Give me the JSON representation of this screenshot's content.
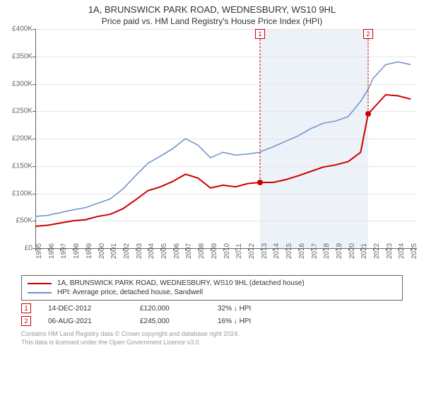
{
  "title": "1A, BRUNSWICK PARK ROAD, WEDNESBURY, WS10 9HL",
  "subtitle": "Price paid vs. HM Land Registry's House Price Index (HPI)",
  "chart": {
    "type": "line",
    "background_color": "#ffffff",
    "grid_color": "#e6e6e6",
    "axis_color": "#666666",
    "shaded_region_color": "#ecf2f8",
    "x": {
      "min": 1995,
      "max": 2025.5,
      "ticks": [
        1995,
        1996,
        1997,
        1998,
        1999,
        2000,
        2001,
        2002,
        2003,
        2004,
        2005,
        2006,
        2007,
        2008,
        2009,
        2010,
        2011,
        2012,
        2013,
        2014,
        2015,
        2016,
        2017,
        2018,
        2019,
        2020,
        2021,
        2022,
        2023,
        2024,
        2025
      ],
      "tick_label_fontsize": 10,
      "tick_label_rotation": -90
    },
    "y": {
      "min": 0,
      "max": 400000,
      "ticks": [
        0,
        50000,
        100000,
        150000,
        200000,
        250000,
        300000,
        350000,
        400000
      ],
      "tick_labels": [
        "£0",
        "£50K",
        "£100K",
        "£150K",
        "£200K",
        "£250K",
        "£300K",
        "£350K",
        "£400K"
      ],
      "tick_label_fontsize": 10
    },
    "series": [
      {
        "name": "property",
        "label": "1A, BRUNSWICK PARK ROAD, WEDNESBURY, WS10 9HL (detached house)",
        "color": "#cc0000",
        "line_width": 2,
        "data": [
          [
            1995,
            40000
          ],
          [
            1996,
            42000
          ],
          [
            1997,
            46000
          ],
          [
            1998,
            50000
          ],
          [
            1999,
            52000
          ],
          [
            2000,
            58000
          ],
          [
            2001,
            62000
          ],
          [
            2002,
            72000
          ],
          [
            2003,
            88000
          ],
          [
            2004,
            105000
          ],
          [
            2005,
            112000
          ],
          [
            2006,
            122000
          ],
          [
            2007,
            135000
          ],
          [
            2008,
            128000
          ],
          [
            2009,
            110000
          ],
          [
            2010,
            115000
          ],
          [
            2011,
            112000
          ],
          [
            2012,
            118000
          ],
          [
            2012.96,
            120000
          ],
          [
            2013,
            120000
          ],
          [
            2014,
            120000
          ],
          [
            2015,
            125000
          ],
          [
            2016,
            132000
          ],
          [
            2017,
            140000
          ],
          [
            2018,
            148000
          ],
          [
            2019,
            152000
          ],
          [
            2020,
            158000
          ],
          [
            2021,
            175000
          ],
          [
            2021.6,
            245000
          ],
          [
            2022,
            255000
          ],
          [
            2023,
            280000
          ],
          [
            2024,
            278000
          ],
          [
            2025,
            272000
          ]
        ]
      },
      {
        "name": "hpi",
        "label": "HPI: Average price, detached house, Sandwell",
        "color": "#6b8fc9",
        "line_width": 1.5,
        "data": [
          [
            1995,
            58000
          ],
          [
            1996,
            60000
          ],
          [
            1997,
            65000
          ],
          [
            1998,
            70000
          ],
          [
            1999,
            74000
          ],
          [
            2000,
            82000
          ],
          [
            2001,
            90000
          ],
          [
            2002,
            108000
          ],
          [
            2003,
            132000
          ],
          [
            2004,
            155000
          ],
          [
            2005,
            168000
          ],
          [
            2006,
            182000
          ],
          [
            2007,
            200000
          ],
          [
            2008,
            188000
          ],
          [
            2009,
            165000
          ],
          [
            2010,
            175000
          ],
          [
            2011,
            170000
          ],
          [
            2012,
            172000
          ],
          [
            2012.96,
            175000
          ],
          [
            2013,
            176000
          ],
          [
            2014,
            185000
          ],
          [
            2015,
            195000
          ],
          [
            2016,
            205000
          ],
          [
            2017,
            218000
          ],
          [
            2018,
            228000
          ],
          [
            2019,
            232000
          ],
          [
            2020,
            240000
          ],
          [
            2021,
            268000
          ],
          [
            2021.6,
            290000
          ],
          [
            2022,
            310000
          ],
          [
            2023,
            335000
          ],
          [
            2024,
            340000
          ],
          [
            2025,
            335000
          ]
        ]
      }
    ],
    "shaded_region": {
      "from_x": 2012.96,
      "to_x": 2021.6
    },
    "markers": [
      {
        "id": "1",
        "x": 2012.96,
        "y": 120000,
        "color": "#cc0000"
      },
      {
        "id": "2",
        "x": 2021.6,
        "y": 245000,
        "color": "#cc0000"
      }
    ]
  },
  "legend": {
    "items": [
      {
        "color": "#cc0000",
        "label": "1A, BRUNSWICK PARK ROAD, WEDNESBURY, WS10 9HL (detached house)"
      },
      {
        "color": "#6b8fc9",
        "label": "HPI: Average price, detached house, Sandwell"
      }
    ]
  },
  "sales": [
    {
      "marker": "1",
      "marker_color": "#cc0000",
      "date": "14-DEC-2012",
      "price": "£120,000",
      "delta": "32% ↓ HPI"
    },
    {
      "marker": "2",
      "marker_color": "#cc0000",
      "date": "06-AUG-2021",
      "price": "£245,000",
      "delta": "16% ↓ HPI"
    }
  ],
  "footer": {
    "line1": "Contains HM Land Registry data © Crown copyright and database right 2024.",
    "line2": "This data is licensed under the Open Government Licence v3.0."
  }
}
